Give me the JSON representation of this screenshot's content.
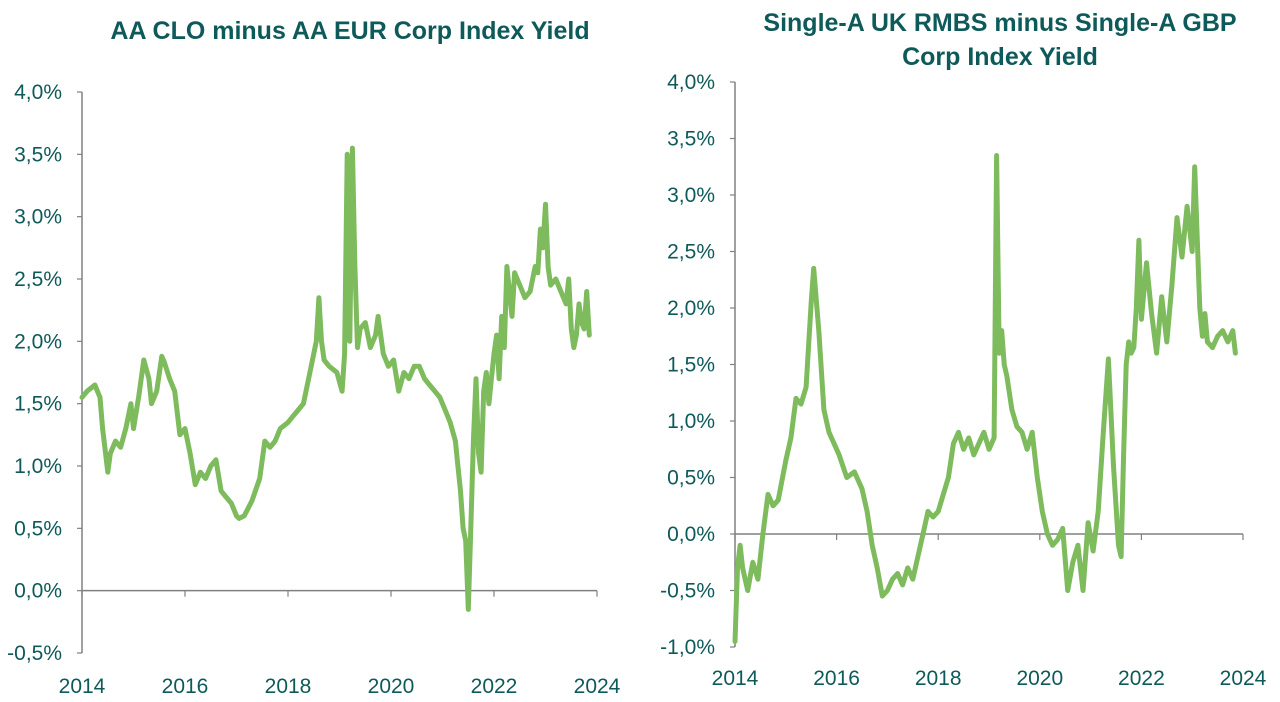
{
  "colors": {
    "line": "#7DBB5D",
    "axis": "#808080",
    "text": "#0E5A5A"
  },
  "chart_data": [
    {
      "type": "line",
      "title": "AA CLO minus AA EUR Corp Index Yield",
      "title_lines": [
        "AA CLO minus AA EUR Corp Index Yield"
      ],
      "xlabel": "",
      "ylabel": "",
      "xlim": [
        2014,
        2024
      ],
      "ylim": [
        -0.5,
        4.0
      ],
      "x_ticks": [
        "2014",
        "2016",
        "2018",
        "2020",
        "2022",
        "2024"
      ],
      "y_ticks": [
        "-0,5%",
        "0,0%",
        "0,5%",
        "1,0%",
        "1,5%",
        "2,0%",
        "2,5%",
        "3,0%",
        "3,5%",
        "4,0%"
      ],
      "grid": false,
      "series": [
        {
          "x": [
            2014.0,
            2014.1,
            2014.25,
            2014.35,
            2014.4,
            2014.5,
            2014.55,
            2014.65,
            2014.75,
            2014.85,
            2014.95,
            2015.0,
            2015.1,
            2015.2,
            2015.3,
            2015.35,
            2015.45,
            2015.55,
            2015.6,
            2015.7,
            2015.8,
            2015.9,
            2016.0,
            2016.1,
            2016.2,
            2016.3,
            2016.4,
            2016.5,
            2016.6,
            2016.7,
            2016.8,
            2016.9,
            2017.0,
            2017.05,
            2017.15,
            2017.3,
            2017.45,
            2017.55,
            2017.65,
            2017.75,
            2017.85,
            2018.0,
            2018.1,
            2018.2,
            2018.3,
            2018.45,
            2018.55,
            2018.6,
            2018.65,
            2018.7,
            2018.8,
            2018.95,
            2019.05,
            2019.1,
            2019.15,
            2019.2,
            2019.25,
            2019.3,
            2019.35,
            2019.4,
            2019.5,
            2019.6,
            2019.7,
            2019.75,
            2019.85,
            2019.95,
            2020.05,
            2020.15,
            2020.25,
            2020.35,
            2020.45,
            2020.55,
            2020.65,
            2020.75,
            2020.85,
            2020.95,
            2021.05,
            2021.15,
            2021.25,
            2021.3,
            2021.35,
            2021.4,
            2021.45,
            2021.5,
            2021.55,
            2021.6,
            2021.65,
            2021.7,
            2021.75,
            2021.8,
            2021.85,
            2021.9,
            2021.95,
            2022.0,
            2022.05,
            2022.1,
            2022.15,
            2022.2,
            2022.25,
            2022.3,
            2022.35,
            2022.4,
            2022.5,
            2022.6,
            2022.7,
            2022.8,
            2022.85,
            2022.9,
            2022.95,
            2023.0,
            2023.05,
            2023.1,
            2023.2,
            2023.3,
            2023.4,
            2023.45,
            2023.5,
            2023.55,
            2023.6,
            2023.65,
            2023.7,
            2023.75,
            2023.8,
            2023.85
          ],
          "values": [
            1.55,
            1.6,
            1.65,
            1.55,
            1.3,
            0.95,
            1.1,
            1.2,
            1.15,
            1.3,
            1.5,
            1.3,
            1.55,
            1.85,
            1.7,
            1.5,
            1.6,
            1.88,
            1.83,
            1.7,
            1.6,
            1.25,
            1.3,
            1.1,
            0.85,
            0.95,
            0.9,
            1.0,
            1.05,
            0.8,
            0.75,
            0.7,
            0.6,
            0.58,
            0.6,
            0.72,
            0.9,
            1.2,
            1.15,
            1.2,
            1.3,
            1.35,
            1.4,
            1.45,
            1.5,
            1.8,
            2.0,
            2.35,
            2.0,
            1.85,
            1.8,
            1.75,
            1.6,
            1.9,
            3.5,
            2.0,
            3.55,
            2.6,
            1.95,
            2.1,
            2.15,
            1.95,
            2.05,
            2.2,
            1.9,
            1.8,
            1.85,
            1.6,
            1.75,
            1.7,
            1.8,
            1.8,
            1.7,
            1.65,
            1.6,
            1.55,
            1.45,
            1.35,
            1.2,
            1.0,
            0.8,
            0.5,
            0.4,
            -0.15,
            0.5,
            1.2,
            1.7,
            1.1,
            0.95,
            1.6,
            1.75,
            1.5,
            1.7,
            1.9,
            2.05,
            1.7,
            2.2,
            1.95,
            2.6,
            2.4,
            2.2,
            2.55,
            2.45,
            2.35,
            2.4,
            2.6,
            2.55,
            2.9,
            2.75,
            3.1,
            2.6,
            2.45,
            2.5,
            2.4,
            2.3,
            2.5,
            2.1,
            1.95,
            2.05,
            2.3,
            2.15,
            2.1,
            2.4,
            2.05
          ]
        }
      ]
    },
    {
      "type": "line",
      "title": "Single-A UK RMBS minus Single-A GBP Corp Index Yield",
      "title_lines": [
        "Single-A UK RMBS minus Single-A GBP",
        "Corp Index Yield"
      ],
      "xlabel": "",
      "ylabel": "",
      "xlim": [
        2014,
        2024
      ],
      "ylim": [
        -1.0,
        4.0
      ],
      "x_ticks": [
        "2014",
        "2016",
        "2018",
        "2020",
        "2022",
        "2024"
      ],
      "y_ticks": [
        "-1,0%",
        "-0,5%",
        "0,0%",
        "0,5%",
        "1,0%",
        "1,5%",
        "2,0%",
        "2,5%",
        "3,0%",
        "3,5%",
        "4,0%"
      ],
      "grid": false,
      "series": [
        {
          "x": [
            2014.0,
            2014.05,
            2014.1,
            2014.15,
            2014.25,
            2014.35,
            2014.45,
            2014.55,
            2014.65,
            2014.75,
            2014.85,
            2015.0,
            2015.1,
            2015.2,
            2015.3,
            2015.4,
            2015.5,
            2015.55,
            2015.65,
            2015.75,
            2015.85,
            2015.95,
            2016.05,
            2016.2,
            2016.35,
            2016.5,
            2016.6,
            2016.7,
            2016.8,
            2016.9,
            2017.0,
            2017.1,
            2017.2,
            2017.3,
            2017.4,
            2017.5,
            2017.6,
            2017.7,
            2017.8,
            2017.9,
            2018.0,
            2018.1,
            2018.2,
            2018.3,
            2018.4,
            2018.5,
            2018.6,
            2018.7,
            2018.8,
            2018.9,
            2019.0,
            2019.1,
            2019.15,
            2019.2,
            2019.25,
            2019.3,
            2019.35,
            2019.45,
            2019.55,
            2019.65,
            2019.75,
            2019.85,
            2019.95,
            2020.05,
            2020.15,
            2020.25,
            2020.35,
            2020.45,
            2020.55,
            2020.65,
            2020.75,
            2020.85,
            2020.95,
            2021.05,
            2021.15,
            2021.25,
            2021.35,
            2021.45,
            2021.55,
            2021.6,
            2021.65,
            2021.7,
            2021.75,
            2021.8,
            2021.85,
            2021.9,
            2021.95,
            2022.0,
            2022.1,
            2022.2,
            2022.3,
            2022.4,
            2022.5,
            2022.6,
            2022.7,
            2022.8,
            2022.9,
            2023.0,
            2023.05,
            2023.1,
            2023.15,
            2023.2,
            2023.25,
            2023.3,
            2023.4,
            2023.5,
            2023.6,
            2023.7,
            2023.8,
            2023.85
          ],
          "values": [
            -0.95,
            -0.3,
            -0.1,
            -0.3,
            -0.5,
            -0.25,
            -0.4,
            0.0,
            0.35,
            0.25,
            0.3,
            0.65,
            0.85,
            1.2,
            1.15,
            1.3,
            2.05,
            2.35,
            1.8,
            1.1,
            0.9,
            0.8,
            0.7,
            0.5,
            0.55,
            0.4,
            0.2,
            -0.1,
            -0.3,
            -0.55,
            -0.5,
            -0.4,
            -0.35,
            -0.45,
            -0.3,
            -0.4,
            -0.2,
            0.0,
            0.2,
            0.15,
            0.2,
            0.35,
            0.5,
            0.8,
            0.9,
            0.75,
            0.85,
            0.7,
            0.8,
            0.9,
            0.75,
            0.85,
            3.35,
            1.6,
            1.8,
            1.5,
            1.4,
            1.1,
            0.95,
            0.9,
            0.75,
            0.9,
            0.5,
            0.2,
            0.0,
            -0.1,
            -0.05,
            0.05,
            -0.5,
            -0.25,
            -0.1,
            -0.5,
            0.1,
            -0.15,
            0.2,
            0.9,
            1.55,
            0.6,
            -0.1,
            -0.2,
            0.7,
            1.5,
            1.7,
            1.6,
            1.65,
            2.0,
            2.6,
            1.9,
            2.4,
            1.95,
            1.6,
            2.1,
            1.7,
            2.2,
            2.8,
            2.45,
            2.9,
            2.5,
            3.25,
            2.6,
            2.0,
            1.75,
            1.95,
            1.7,
            1.65,
            1.75,
            1.8,
            1.7,
            1.8,
            1.6
          ]
        }
      ]
    }
  ]
}
